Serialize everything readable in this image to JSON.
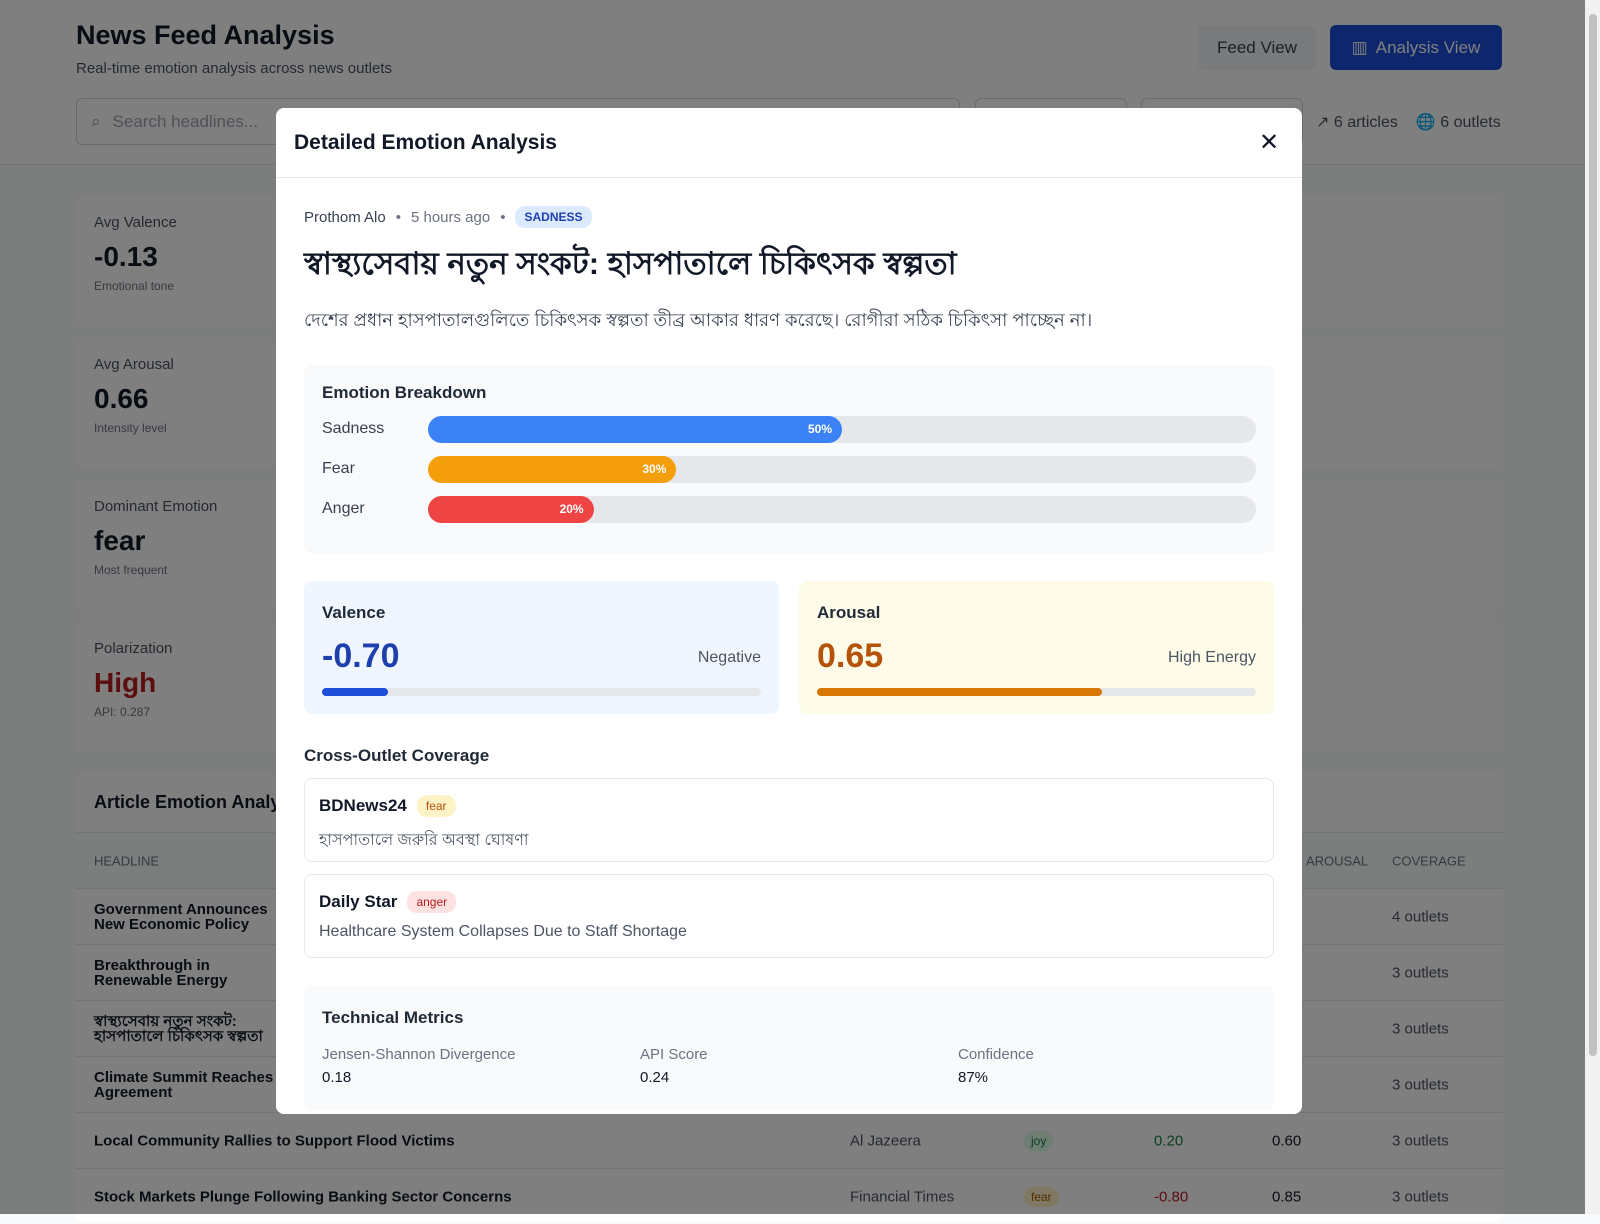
{
  "header": {
    "title": "News Feed Analysis",
    "subtitle": "Real-time emotion analysis across news outlets",
    "feed_view": "Feed View",
    "analysis_view": "Analysis View",
    "search_placeholder": "Search headlines...",
    "articles": "6 articles",
    "outlets": "6 outlets"
  },
  "stats": [
    {
      "label": "Avg Valence",
      "value": "-0.13",
      "sub": "Emotional tone"
    },
    {
      "label": "Avg Arousal",
      "value": "0.66",
      "sub": "Intensity level"
    },
    {
      "label": "Dominant Emotion",
      "value": "fear",
      "sub": "Most frequent"
    },
    {
      "label": "Polarization",
      "value": "High",
      "sub": "API: 0.287"
    }
  ],
  "table": {
    "title": "Article Emotion Analysis",
    "headers": {
      "headline": "HEADLINE",
      "arousal": "AROUSAL",
      "coverage": "COVERAGE"
    },
    "rows": [
      {
        "headline": "Government Announces New Economic Policy",
        "outlet": "",
        "emotion": "",
        "valence": "",
        "arousal": "",
        "coverage": "4 outlets"
      },
      {
        "headline": "Breakthrough in Renewable Energy",
        "outlet": "",
        "emotion": "",
        "valence": "",
        "arousal": "",
        "coverage": "3 outlets"
      },
      {
        "headline": "স্বাস্থ্যসেবায় নতুন সংকট: হাসপাতালে চিকিৎসক স্বল্পতা",
        "outlet": "",
        "emotion": "",
        "valence": "",
        "arousal": "",
        "coverage": "3 outlets"
      },
      {
        "headline": "Climate Summit Reaches Agreement",
        "outlet": "",
        "emotion": "",
        "valence": "",
        "arousal": "",
        "coverage": "3 outlets"
      },
      {
        "headline": "Local Community Rallies to Support Flood Victims",
        "outlet": "Al Jazeera",
        "emotion": "joy",
        "valence": "0.20",
        "arousal": "0.60",
        "coverage": "3 outlets"
      },
      {
        "headline": "Stock Markets Plunge Following Banking Sector Concerns",
        "outlet": "Financial Times",
        "emotion": "fear",
        "valence": "-0.80",
        "arousal": "0.85",
        "coverage": "3 outlets"
      }
    ]
  },
  "modal": {
    "title": "Detailed Emotion Analysis",
    "source": "Prothom Alo",
    "time": "5 hours ago",
    "emotion_badge": "SADNESS",
    "headline": "স্বাস্থ্যসেবায় নতুন সংকট: হাসপাতালে চিকিৎসক স্বল্পতা",
    "description": "দেশের প্রধান হাসপাতালগুলিতে চিকিৎসক স্বল্পতা তীব্র আকার ধারণ করেছে। রোগীরা সঠিক চিকিৎসা পাচ্ছেন না।",
    "breakdown_title": "Emotion Breakdown",
    "emotions": [
      {
        "name": "Sadness",
        "percent": 50,
        "label": "50%",
        "color": "#3b82f6"
      },
      {
        "name": "Fear",
        "percent": 30,
        "label": "30%",
        "color": "#f59e0b"
      },
      {
        "name": "Anger",
        "percent": 20,
        "label": "20%",
        "color": "#ef4444"
      }
    ],
    "valence": {
      "label": "Valence",
      "value": "-0.70",
      "tag": "Negative",
      "level": -0.7
    },
    "arousal": {
      "label": "Arousal",
      "value": "0.65",
      "tag": "High Energy",
      "level": 0.65
    },
    "coverage_title": "Cross-Outlet Coverage",
    "coverage": [
      {
        "outlet": "BDNews24",
        "emotion": "fear",
        "headline": "হাসপাতালে জরুরি অবস্থা ঘোষণা"
      },
      {
        "outlet": "Daily Star",
        "emotion": "anger",
        "headline": "Healthcare System Collapses Due to Staff Shortage"
      }
    ],
    "tech_title": "Technical Metrics",
    "metrics": [
      {
        "label": "Jensen-Shannon Divergence",
        "value": "0.18"
      },
      {
        "label": "API Score",
        "value": "0.24"
      },
      {
        "label": "Confidence",
        "value": "87%"
      }
    ]
  }
}
